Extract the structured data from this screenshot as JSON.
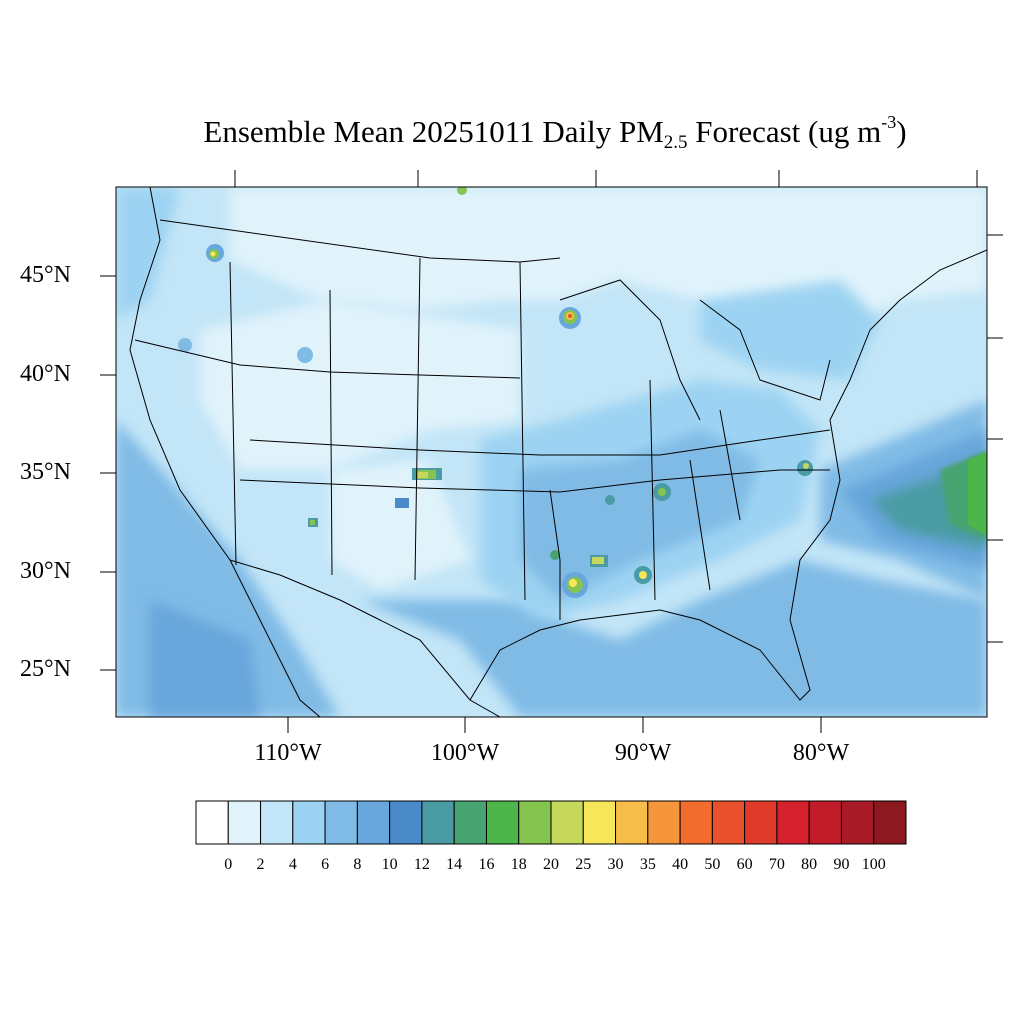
{
  "title": {
    "prefix": "Ensemble Mean 20251011 Daily PM",
    "sub": "2.5",
    "middle": " Forecast (ug m",
    "sup": "-3",
    "suffix": ")"
  },
  "lat_labels": [
    "45°N",
    "40°N",
    "35°N",
    "30°N",
    "25°N"
  ],
  "lon_labels": [
    "110°W",
    "100°W",
    "90°W",
    "80°W"
  ],
  "colorbar": {
    "labels": [
      "0",
      "2",
      "4",
      "6",
      "8",
      "10",
      "12",
      "14",
      "16",
      "18",
      "20",
      "25",
      "30",
      "35",
      "40",
      "50",
      "60",
      "70",
      "80",
      "90",
      "100"
    ],
    "colors": [
      "#ffffff",
      "#e0f3fb",
      "#c2e5f7",
      "#9dd3f2",
      "#80bbe6",
      "#68a6dc",
      "#4a8ac8",
      "#4a9ba3",
      "#47a471",
      "#4cb64a",
      "#86c450",
      "#c5d85c",
      "#f7e65a",
      "#f7bd4a",
      "#f6963c",
      "#f26c30",
      "#e8512c",
      "#df3a2a",
      "#d5202d",
      "#c01c2a",
      "#a81a26",
      "#8c1820"
    ]
  }
}
